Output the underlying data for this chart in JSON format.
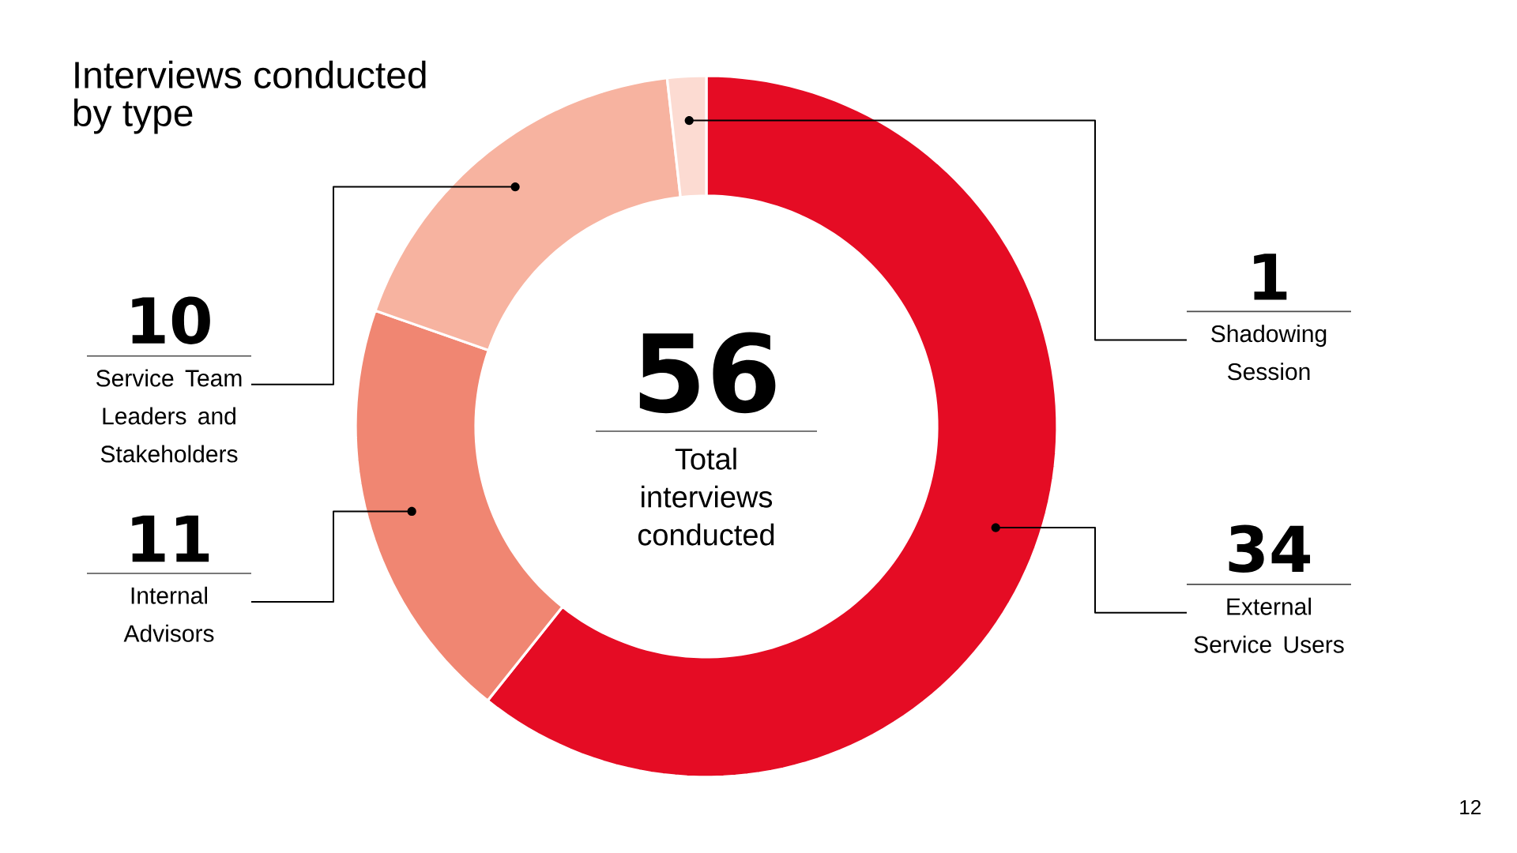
{
  "chart_data": {
    "type": "donut",
    "title": "Interviews conducted by type",
    "categories": [
      "External Service Users",
      "Internal Advisors",
      "Service Team Leaders and Stakeholders",
      "Shadowing Session"
    ],
    "values": [
      34,
      11,
      10,
      1
    ],
    "colors": [
      "#e50c24",
      "#f08672",
      "#f7b3a0",
      "#fcdbd2"
    ],
    "data_labels": true,
    "legend": false,
    "annotations": [
      "56",
      "Total interviews conducted",
      "12"
    ]
  }
}
